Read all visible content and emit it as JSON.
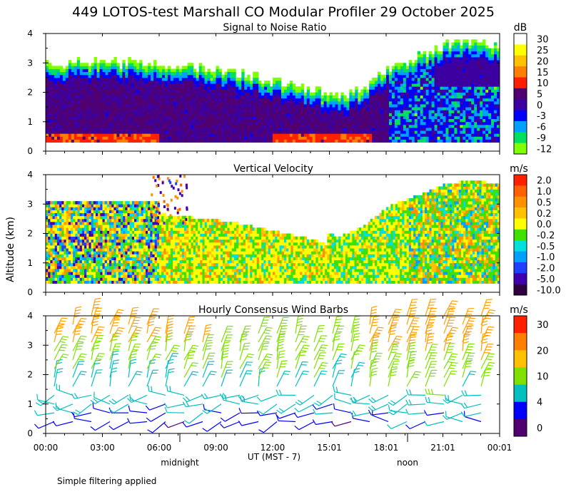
{
  "title": "449 LOTOS-test Marshall CO Modular Profiler 29 October 2025",
  "y_axis_label": "Altitude (km)",
  "x_axis_label": "UT  (MST - 7)",
  "midnight_label": "midnight",
  "noon_label": "noon",
  "footer_note": "Simple filtering applied",
  "chart_data": [
    {
      "type": "heatmap",
      "title": "Signal to Noise Ratio",
      "units": "dB",
      "ylabel": "Altitude (km)",
      "xlabel": "UT  (MST - 7)",
      "x_tick_labels": [
        "00:00",
        "03:00",
        "06:00",
        "09:00",
        "12:00",
        "15:01",
        "18:01",
        "21:01",
        "00:01"
      ],
      "y_ticks": [
        0,
        1,
        2,
        3,
        4
      ],
      "ylim": [
        0,
        4
      ],
      "colorbar": {
        "labels": [
          "30",
          "25",
          "20",
          "15",
          "10",
          "5",
          "0",
          "-3",
          "-6",
          "-9",
          "-12"
        ],
        "colors": [
          "#ffffff",
          "#ffff00",
          "#ffc000",
          "#ff8000",
          "#ff2000",
          "#500070",
          "#3c00a0",
          "#0000ff",
          "#00a0ff",
          "#00e060",
          "#80ff00"
        ]
      },
      "data_top_km_approx": [
        3.0,
        3.0,
        3.0,
        3.0,
        3.0,
        2.9,
        2.8,
        2.7,
        2.5,
        2.3,
        2.1,
        1.8,
        2.2,
        2.9,
        3.2,
        3.6,
        3.7,
        3.6
      ]
    },
    {
      "type": "heatmap",
      "title": "Vertical Velocity",
      "units": "m/s",
      "x_tick_labels": [
        "00:00",
        "03:00",
        "06:00",
        "09:00",
        "12:00",
        "15:01",
        "18:01",
        "21:01",
        "00:01"
      ],
      "y_ticks": [
        0,
        1,
        2,
        3,
        4
      ],
      "ylim": [
        0,
        4
      ],
      "colorbar": {
        "labels": [
          "2.0",
          "1.0",
          "0.5",
          "0.2",
          "0.0",
          "-0.2",
          "-0.5",
          "-1.0",
          "-2.0",
          "-5.0",
          "-10.0"
        ],
        "colors": [
          "#ff2000",
          "#ff6000",
          "#ff9000",
          "#ffc000",
          "#ffff00",
          "#40e000",
          "#00e0e0",
          "#00a0ff",
          "#2040ff",
          "#4000b0",
          "#300040"
        ]
      }
    },
    {
      "type": "wind_barbs",
      "title": "Hourly Consensus Wind Barbs",
      "units": "m/s",
      "x_tick_labels": [
        "00:00",
        "03:00",
        "06:00",
        "09:00",
        "12:00",
        "15:01",
        "18:01",
        "21:01",
        "00:01"
      ],
      "y_ticks": [
        0,
        1,
        2,
        3,
        4
      ],
      "ylim": [
        0,
        4
      ],
      "colorbar": {
        "labels": [
          "30",
          "20",
          "10",
          "4",
          "0"
        ],
        "colors": [
          "#ff2000",
          "#ff8000",
          "#ffc000",
          "#80e000",
          "#00c0c0",
          "#0000ff",
          "#500070"
        ]
      },
      "hours": 24,
      "levels_km": [
        0.4,
        0.7,
        1.0,
        1.3,
        1.6,
        1.9,
        2.2,
        2.5,
        2.8,
        3.1,
        3.4,
        3.7,
        4.0
      ],
      "top_km_by_hour": [
        3.6,
        3.8,
        4.0,
        3.9,
        3.7,
        3.7,
        3.6,
        3.5,
        3.3,
        3.2,
        3.3,
        3.5,
        3.5,
        3.5,
        3.3,
        3.4,
        3.6,
        3.8,
        3.9,
        4.0,
        4.0,
        4.0,
        3.9,
        4.1
      ]
    }
  ]
}
